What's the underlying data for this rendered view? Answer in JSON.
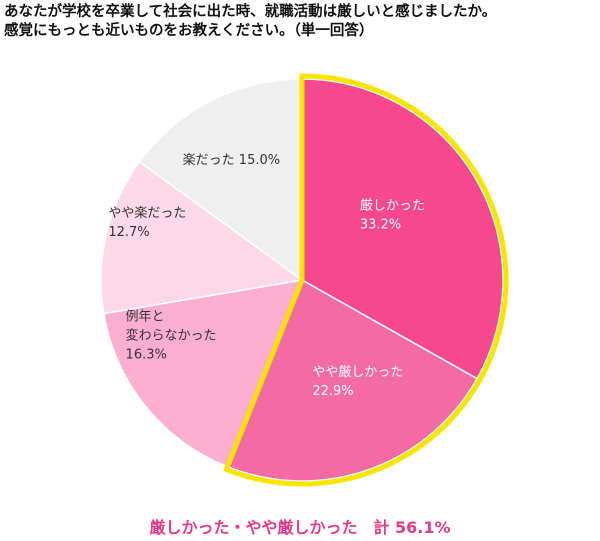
{
  "question": {
    "line1": "あなたが学校を卒業して社会に出た時、就職活動は厳しいと感じましたか。",
    "line2": "感覚にもっとも近いものをお教えください。（単一回答）"
  },
  "chart_data": {
    "type": "pie",
    "start_angle_deg": 0,
    "direction": "clockwise",
    "slices": [
      {
        "label_lines": [
          "厳しかった"
        ],
        "value": 33.2,
        "value_text": "33.2%",
        "color": "#f5488d",
        "text_color": "#ffffff",
        "emphasized": true
      },
      {
        "label_lines": [
          "やや厳しかった"
        ],
        "value": 22.9,
        "value_text": "22.9%",
        "color": "#f26ba3",
        "text_color": "#ffffff",
        "emphasized": true
      },
      {
        "label_lines": [
          "例年と",
          "変わらなかった"
        ],
        "value": 16.3,
        "value_text": "16.3%",
        "color": "#fbaed0",
        "text_color": "#333333",
        "emphasized": false
      },
      {
        "label_lines": [
          "やや楽だった"
        ],
        "value": 12.7,
        "value_text": "12.7%",
        "color": "#fdd9e8",
        "text_color": "#333333",
        "emphasized": false
      },
      {
        "label_lines": [
          "楽だった"
        ],
        "value": 15.0,
        "value_text": "15.0%",
        "color": "#efefef",
        "text_color": "#333333",
        "emphasized": false,
        "inline_value": true
      }
    ],
    "highlight_color": "#f7e500"
  },
  "summary": "厳しかった・やや厳しかった　計 56.1%"
}
